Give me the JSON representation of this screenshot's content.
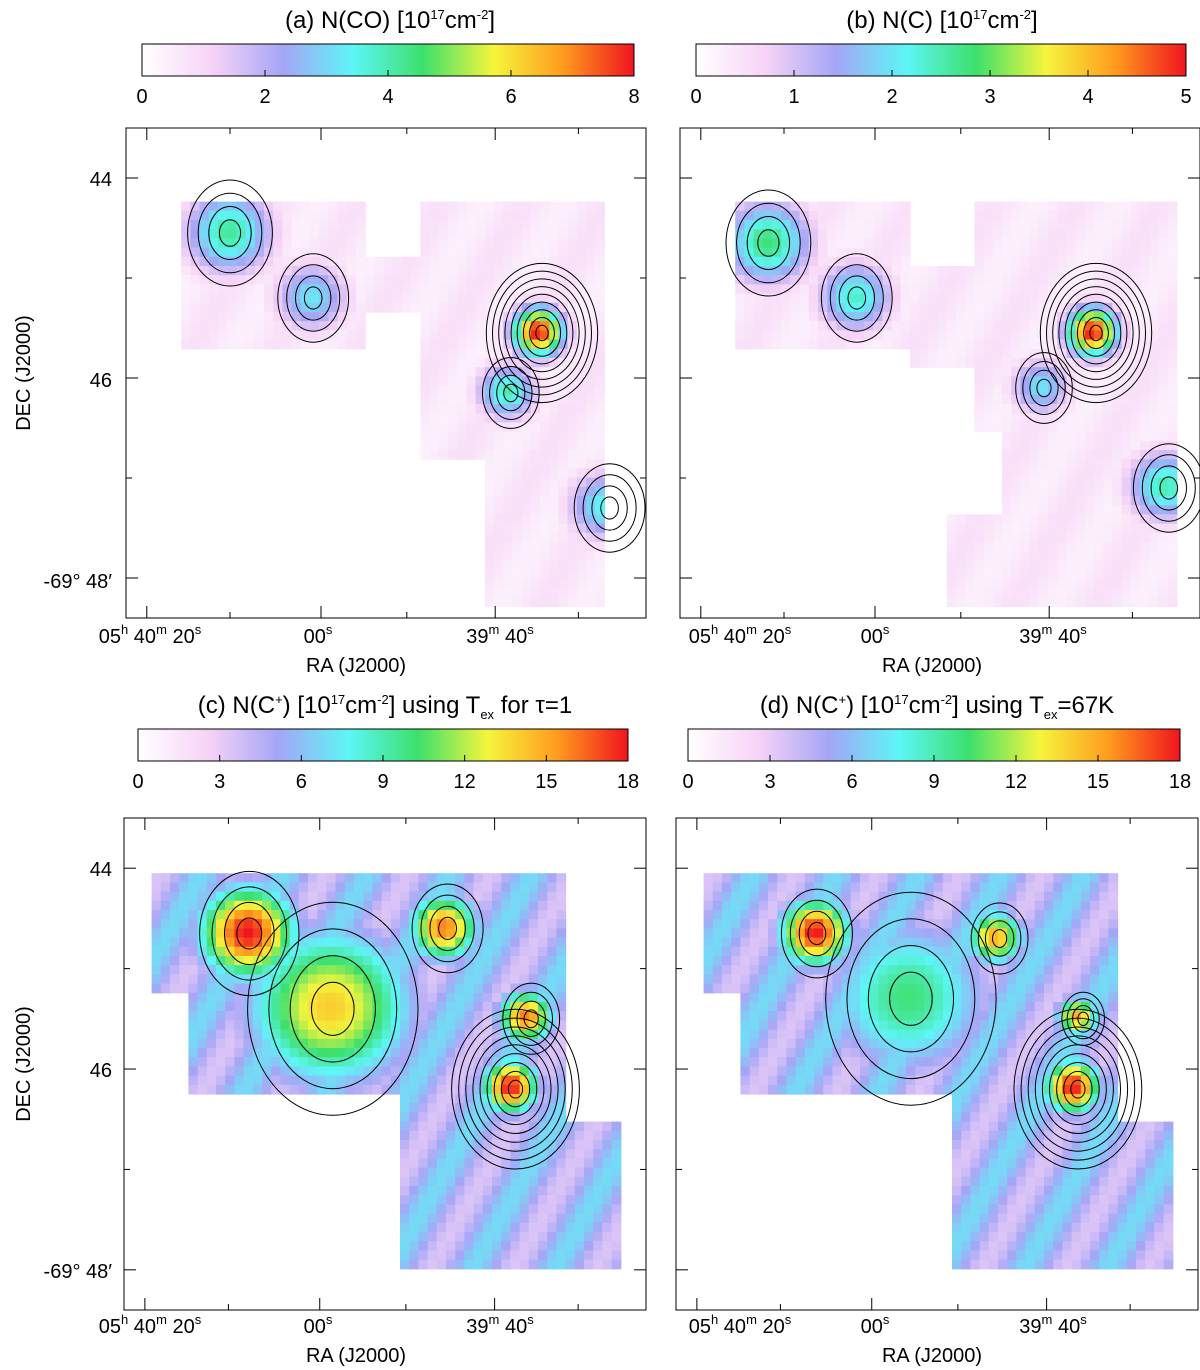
{
  "colors": [
    "#ffffff",
    "#f6d3f6",
    "#a5a5f6",
    "#5cf6f6",
    "#3ce06c",
    "#f5f53c",
    "#ff9a1e",
    "#f0141e"
  ],
  "common": {
    "xlabel": "RA (J2000)",
    "ylabel": "DEC (J2000)",
    "ra_ticks": {
      "h_num": "05",
      "h_sup": "h",
      "m40_num": "40",
      "m40_sup": "m",
      "s20_num": "20",
      "s20_sup": "s",
      "s00_num": "00",
      "s00_sup": "s",
      "m39_num": "39",
      "m39_sup": "m",
      "s40_num": "40",
      "s40_sup": "s"
    },
    "dec_ticks": {
      "t44": "44",
      "t46": "46",
      "t48_deg": "-69°",
      "t48_min": "48′"
    }
  },
  "chart_data": [
    {
      "type": "heatmap",
      "panel": "a",
      "title": {
        "pre": "(a)  N(CO) [10",
        "sup1": "17",
        "mid": "cm",
        "sup2": "-2",
        "post": "]"
      },
      "colorbar_ticks": [
        "0",
        "2",
        "4",
        "6",
        "8"
      ],
      "colorbar_range": [
        0,
        8
      ],
      "peaks": [
        {
          "ra_frac": 0.8,
          "dec": 45.55,
          "value": 8.0,
          "sigma": 0.035
        }
      ],
      "blobs": [
        {
          "x": 0.2,
          "y": 44.55,
          "v": 4.2,
          "s": 0.06
        },
        {
          "x": 0.36,
          "y": 45.2,
          "v": 3.2,
          "s": 0.05
        },
        {
          "x": 0.74,
          "y": 46.15,
          "v": 4.0,
          "s": 0.04
        },
        {
          "x": 0.93,
          "y": 47.3,
          "v": 3.5,
          "s": 0.05
        }
      ]
    },
    {
      "type": "heatmap",
      "panel": "b",
      "title": {
        "pre": "(b)  N(C) [10",
        "sup1": "17",
        "mid": "cm",
        "sup2": "-2",
        "post": "]"
      },
      "colorbar_ticks": [
        "0",
        "1",
        "2",
        "3",
        "4",
        "5"
      ],
      "colorbar_range": [
        0,
        5
      ],
      "peaks": [
        {
          "ra_frac": 0.8,
          "dec": 45.55,
          "value": 5.0,
          "sigma": 0.035
        }
      ],
      "blobs": [
        {
          "x": 0.17,
          "y": 44.65,
          "v": 2.8,
          "s": 0.06
        },
        {
          "x": 0.34,
          "y": 45.2,
          "v": 2.4,
          "s": 0.05
        },
        {
          "x": 0.7,
          "y": 46.1,
          "v": 2.0,
          "s": 0.04
        },
        {
          "x": 0.94,
          "y": 47.1,
          "v": 2.5,
          "s": 0.05
        }
      ]
    },
    {
      "type": "heatmap",
      "panel": "c",
      "title": {
        "pre": "(c)  N(C",
        "sup1": "+",
        "mid": ") [10",
        "sup2": "17",
        "mid2": "cm",
        "sup3": "-2",
        "post": "] using T",
        "sub1": "ex",
        "post2": " for τ=1"
      },
      "colorbar_ticks": [
        "0",
        "3",
        "6",
        "9",
        "12",
        "15",
        "18"
      ],
      "colorbar_range": [
        0,
        18
      ],
      "peaks": [
        {
          "ra_frac": 0.75,
          "dec": 46.2,
          "value": 18.0,
          "sigma": 0.04
        }
      ],
      "blobs": [
        {
          "x": 0.24,
          "y": 44.65,
          "v": 18,
          "s": 0.07
        },
        {
          "x": 0.62,
          "y": 44.6,
          "v": 16,
          "s": 0.05
        },
        {
          "x": 0.78,
          "y": 45.5,
          "v": 16,
          "s": 0.04
        },
        {
          "x": 0.4,
          "y": 45.4,
          "v": 14,
          "s": 0.12
        }
      ]
    },
    {
      "type": "heatmap",
      "panel": "d",
      "title": {
        "pre": "(d)  N(C",
        "sup1": "+",
        "mid": ") [10",
        "sup2": "17",
        "mid2": "cm",
        "sup3": "-2",
        "post": "] using T",
        "sub1": "ex",
        "post2": "=67K"
      },
      "colorbar_ticks": [
        "0",
        "3",
        "6",
        "9",
        "12",
        "15",
        "18"
      ],
      "colorbar_range": [
        0,
        18
      ],
      "peaks": [
        {
          "ra_frac": 0.77,
          "dec": 46.2,
          "value": 18.0,
          "sigma": 0.04
        }
      ],
      "blobs": [
        {
          "x": 0.27,
          "y": 44.65,
          "v": 18,
          "s": 0.05
        },
        {
          "x": 0.62,
          "y": 44.7,
          "v": 15,
          "s": 0.04
        },
        {
          "x": 0.78,
          "y": 45.5,
          "v": 15,
          "s": 0.03
        },
        {
          "x": 0.45,
          "y": 45.3,
          "v": 10,
          "s": 0.12
        }
      ]
    }
  ]
}
